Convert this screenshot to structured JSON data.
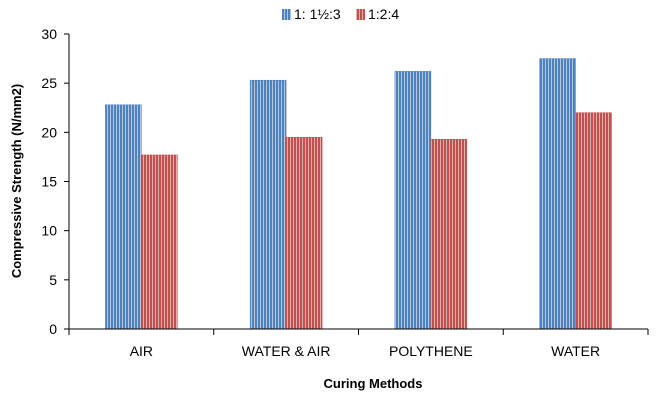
{
  "chart_data": {
    "type": "bar",
    "title": "",
    "xlabel": "Curing Methods",
    "ylabel": "Compressive Strength (N/mm2)",
    "categories": [
      "AIR",
      "WATER & AIR",
      "POLYTHENE",
      "WATER"
    ],
    "series": [
      {
        "name": "1: 1½:3",
        "values": [
          22.8,
          25.3,
          26.2,
          27.5
        ],
        "color": "#4F81BD",
        "stripe": "#ffffff"
      },
      {
        "name": "1:2:4",
        "values": [
          17.7,
          19.5,
          19.3,
          22.0
        ],
        "color": "#C0504D",
        "stripe": "#ffffff"
      }
    ],
    "ylim": [
      0,
      30
    ],
    "yticks": [
      "0",
      "5",
      "10",
      "15",
      "20",
      "25",
      "30"
    ],
    "grid": false,
    "legend_position": "top"
  }
}
